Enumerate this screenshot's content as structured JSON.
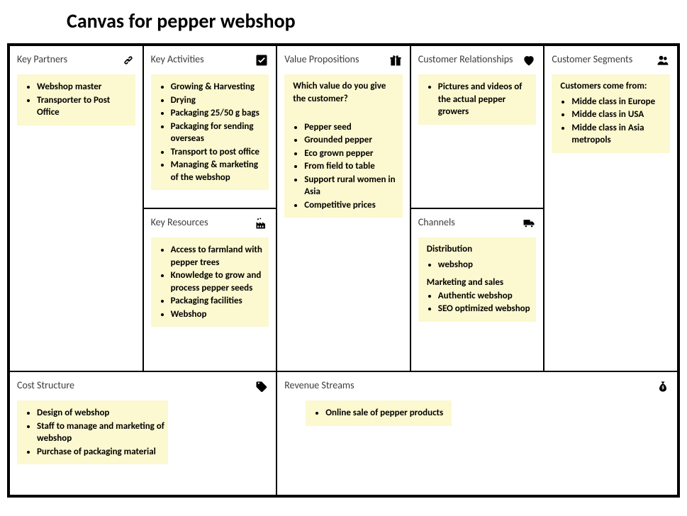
{
  "title": "Canvas for pepper webshop",
  "colors": {
    "note_bg": "#fcf8cf",
    "border": "#000000",
    "title": "#3c3c3c",
    "text": "#000000"
  },
  "blocks": {
    "key_partners": {
      "title": "Key Partners",
      "items": [
        "Webshop master",
        "Transporter to Post Office"
      ]
    },
    "key_activities": {
      "title": "Key Activities",
      "items": [
        "Growing & Harvesting",
        "Drying",
        "Packaging 25/50 g bags",
        "Packaging for sending overseas",
        "Transport to post office",
        "Managing & marketing of the webshop"
      ]
    },
    "key_resources": {
      "title": "Key Resources",
      "items": [
        "Access to farmland with pepper trees",
        "Knowledge to grow and process pepper seeds",
        "Packaging facilities",
        "Webshop"
      ]
    },
    "value_propositions": {
      "title": "Value Propositions",
      "lead": "Which value do you give the customer?",
      "items": [
        "Pepper seed",
        "Grounded pepper",
        "Eco grown pepper",
        "From field to table",
        "Support rural women in Asia",
        "Competitive prices"
      ]
    },
    "customer_relationships": {
      "title": "Customer Relationships",
      "items": [
        "Pictures and videos of the actual pepper growers"
      ]
    },
    "channels": {
      "title": "Channels",
      "sections": [
        {
          "heading": "Distribution",
          "items": [
            "webshop"
          ]
        },
        {
          "heading": "Marketing and sales",
          "items": [
            "Authentic webshop",
            "SEO optimized webshop"
          ]
        }
      ]
    },
    "customer_segments": {
      "title": "Customer Segments",
      "lead": "Customers come from:",
      "items": [
        "Midde class in Europe",
        "Midde class in USA",
        "Midde class in Asia metropols"
      ]
    },
    "cost_structure": {
      "title": "Cost Structure",
      "items": [
        "Design of webshop",
        "Staff to manage and marketing of webshop",
        "Purchase of packaging material"
      ]
    },
    "revenue_streams": {
      "title": "Revenue Streams",
      "items": [
        "Online sale of pepper products"
      ]
    }
  }
}
